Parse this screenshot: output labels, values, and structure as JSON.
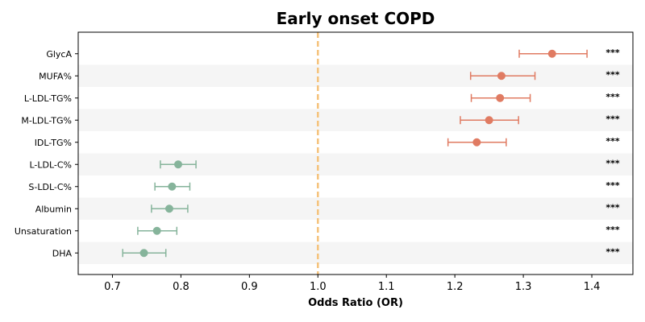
{
  "chart_data": {
    "type": "forest",
    "title": "Early onset COPD",
    "xlabel": "Odds Ratio (OR)",
    "ylabel": "",
    "xlim": [
      0.65,
      1.46
    ],
    "xticks": [
      0.7,
      0.8,
      0.9,
      1.0,
      1.1,
      1.2,
      1.3,
      1.4
    ],
    "xtick_labels": [
      "0.7",
      "0.8",
      "0.9",
      "1.0",
      "1.1",
      "1.2",
      "1.3",
      "1.4"
    ],
    "reference_line": 1.0,
    "grid": false,
    "alternating_row_shading": true,
    "categories": [
      "GlycA",
      "MUFA%",
      "L-LDL-TG%",
      "M-LDL-TG%",
      "IDL-TG%",
      "L-LDL-C%",
      "S-LDL-C%",
      "Albumin",
      "Unsaturation",
      "DHA"
    ],
    "series": [
      {
        "name": "odds_ratio",
        "values": [
          1.342,
          1.268,
          1.266,
          1.25,
          1.232,
          0.796,
          0.787,
          0.783,
          0.765,
          0.746
        ],
        "ci_low": [
          1.294,
          1.223,
          1.224,
          1.208,
          1.19,
          0.77,
          0.762,
          0.757,
          0.737,
          0.715
        ],
        "ci_high": [
          1.393,
          1.317,
          1.31,
          1.293,
          1.275,
          0.822,
          0.813,
          0.81,
          0.794,
          0.778
        ],
        "significance": [
          "***",
          "***",
          "***",
          "***",
          "***",
          "***",
          "***",
          "***",
          "***",
          "***"
        ]
      }
    ],
    "colors": {
      "positive": "#e07b62",
      "negative": "#86b49b",
      "reference_line": "#f5c27a",
      "row_shade": "#f5f5f5",
      "axis": "#000000"
    }
  }
}
